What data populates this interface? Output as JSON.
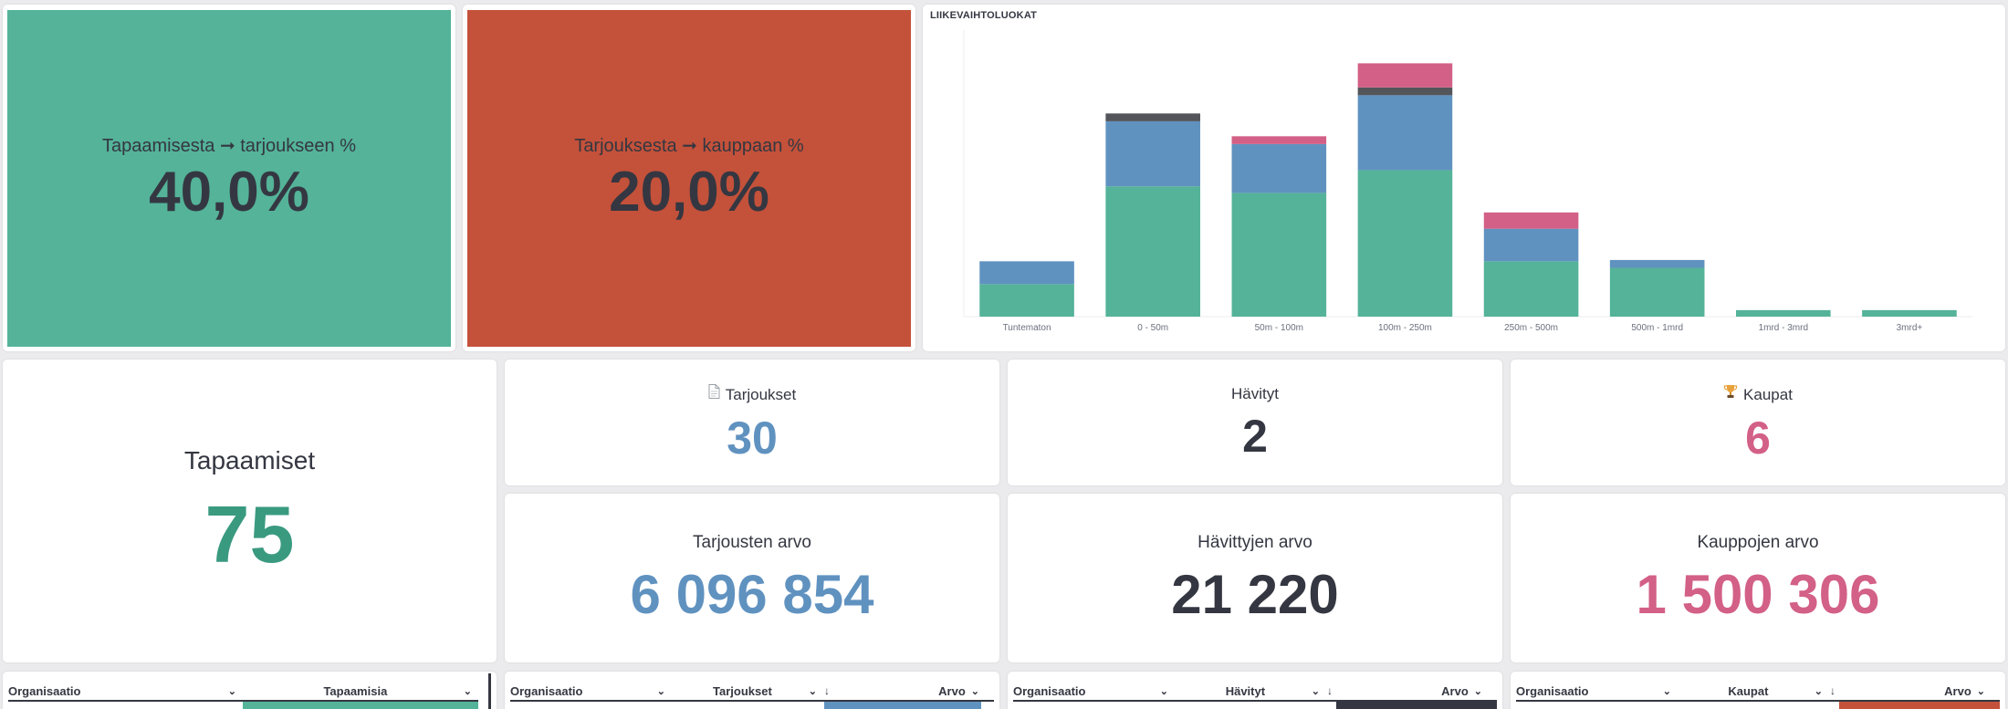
{
  "colors": {
    "green": "#54b399",
    "red": "#c4513a",
    "blue": "#6092c0",
    "pink": "#d36086",
    "dark": "#54555a",
    "text_green": "#3a9a80",
    "text_blue": "#6092c0",
    "text_dark": "#343741",
    "text_pink": "#d36086"
  },
  "rate_meeting_offer": {
    "label": "Tapaamisesta ➞ tarjoukseen %",
    "value": "40,0%"
  },
  "rate_offer_deal": {
    "label": "Tarjouksesta ➞ kauppaan %",
    "value": "20,0%"
  },
  "meetings": {
    "label": "Tapaamiset",
    "value": "75"
  },
  "offers": {
    "icon": "document-icon",
    "label": "Tarjoukset",
    "value": "30"
  },
  "lost": {
    "label": "Hävityt",
    "value": "2"
  },
  "deals": {
    "icon": "trophy-icon",
    "label": "Kaupat",
    "value": "6"
  },
  "offers_value": {
    "label": "Tarjousten arvo",
    "value": "6 096 854"
  },
  "lost_value": {
    "label": "Hävittyjen arvo",
    "value": "21 220"
  },
  "deals_value": {
    "label": "Kauppojen arvo",
    "value": "1 500 306"
  },
  "tables": {
    "meetings": {
      "col1": "Organisaatio",
      "col2": "Tapaamisia"
    },
    "offers": {
      "col1": "Organisaatio",
      "col2": "Tarjoukset",
      "col3": "Arvo"
    },
    "lost": {
      "col1": "Organisaatio",
      "col2": "Hävityt",
      "col3": "Arvo"
    },
    "deals": {
      "col1": "Organisaatio",
      "col2": "Kaupat",
      "col3": "Arvo"
    }
  },
  "chart_data": {
    "type": "bar",
    "stacked": true,
    "title": "LIIKEVAIHTOLUOKAT",
    "categories": [
      "Tuntematon",
      "0 - 50m",
      "50m - 100m",
      "100m - 250m",
      "250m - 500m",
      "500m - 1mrd",
      "1mrd - 3mrd",
      "3mrd+"
    ],
    "series": [
      {
        "color": "#54b399",
        "values": [
          5,
          20,
          19,
          22.5,
          8.5,
          7.5,
          1,
          1
        ]
      },
      {
        "color": "#6092c0",
        "values": [
          3.5,
          10,
          7.5,
          11.5,
          5,
          1.2,
          0,
          0
        ]
      },
      {
        "color": "#54555a",
        "values": [
          0,
          1.2,
          0,
          1.2,
          0,
          0,
          0,
          0
        ]
      },
      {
        "color": "#d36086",
        "values": [
          0,
          0,
          1.2,
          3.7,
          2.5,
          0,
          0,
          0
        ]
      }
    ],
    "ylim": [
      0,
      44
    ],
    "grid": false,
    "legend": "none"
  }
}
